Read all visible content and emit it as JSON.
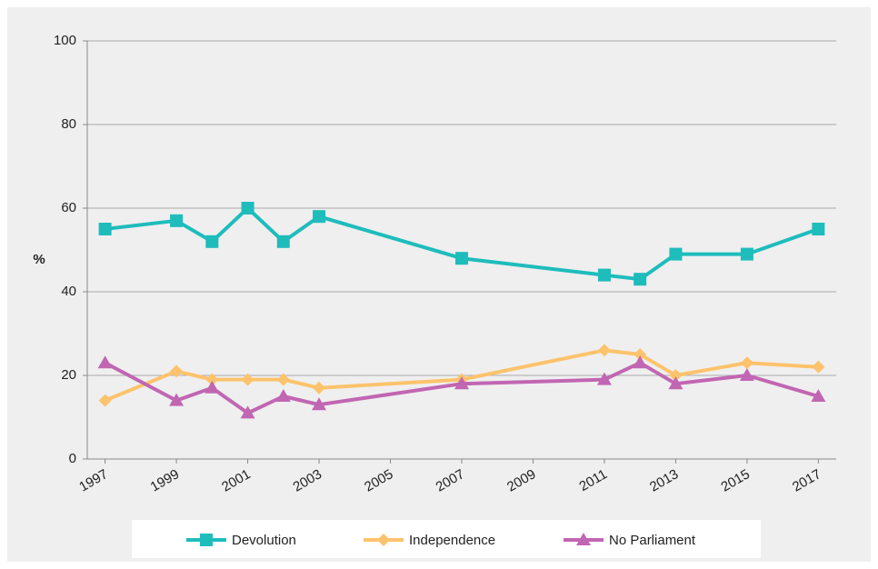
{
  "chart_data": {
    "type": "line",
    "ylabel": "%",
    "x": [
      1997,
      1999,
      2000,
      2001,
      2002,
      2003,
      2007,
      2011,
      2012,
      2013,
      2015,
      2017
    ],
    "series": [
      {
        "name": "Devolution",
        "color": "#1fbcbc",
        "marker": "square",
        "values": [
          55,
          57,
          52,
          60,
          52,
          58,
          48,
          44,
          43,
          49,
          49,
          55
        ]
      },
      {
        "name": "Independence",
        "color": "#fdc36c",
        "marker": "diamond",
        "values": [
          14,
          21,
          19,
          19,
          19,
          17,
          19,
          26,
          25,
          20,
          23,
          22
        ]
      },
      {
        "name": "No Parliament",
        "color": "#c166b2",
        "marker": "triangle",
        "values": [
          23,
          14,
          17,
          11,
          15,
          13,
          18,
          19,
          23,
          18,
          20,
          15
        ]
      }
    ],
    "xlim": [
      1996.5,
      2017.5
    ],
    "xticks": [
      1997,
      1999,
      2001,
      2003,
      2005,
      2007,
      2009,
      2011,
      2013,
      2015,
      2017
    ],
    "ylim": [
      0,
      100
    ],
    "yticks": [
      0,
      20,
      40,
      60,
      80,
      100
    ],
    "grid": true,
    "legend": "bottom"
  }
}
